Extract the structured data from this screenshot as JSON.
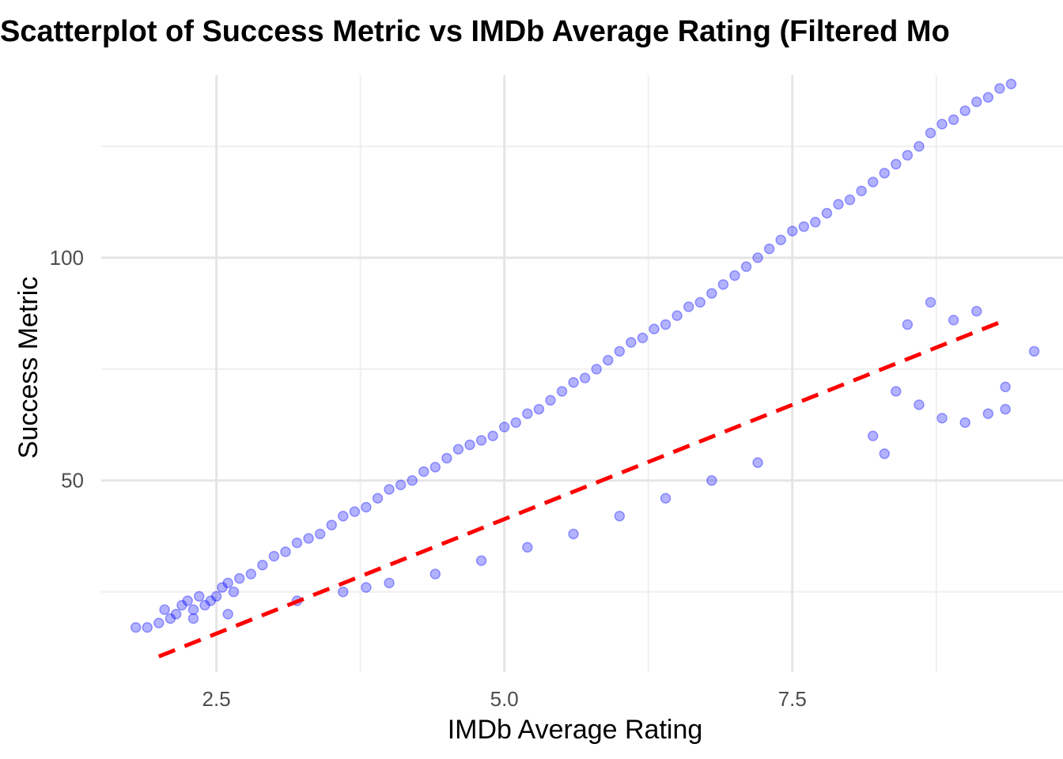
{
  "chart_data": {
    "type": "scatter",
    "title": "Scatterplot of Success Metric vs IMDb Average Rating (Filtered Mo",
    "xlabel": "IMDb Average Rating",
    "ylabel": "Success Metric",
    "xlim": [
      1.5,
      9.85
    ],
    "ylim": [
      7,
      141
    ],
    "x_ticks": [
      2.5,
      5.0,
      7.5
    ],
    "x_tick_labels": [
      "2.5",
      "5.0",
      "7.5"
    ],
    "y_ticks": [
      50,
      100
    ],
    "y_tick_labels": [
      "50",
      "100"
    ],
    "x_minor_ticks": [
      3.75,
      6.25,
      8.75
    ],
    "y_minor_ticks": [
      25,
      75,
      125
    ],
    "grid": true,
    "point_color": "#0000ff",
    "point_opacity": 0.3,
    "series": [
      {
        "type": "scatter",
        "x": [
          1.8,
          1.9,
          2.0,
          2.05,
          2.1,
          2.15,
          2.2,
          2.25,
          2.3,
          2.35,
          2.4,
          2.45,
          2.5,
          2.55,
          2.6,
          2.65,
          2.7,
          2.8,
          2.9,
          3.0,
          3.1,
          3.2,
          3.3,
          3.4,
          3.5,
          3.6,
          3.7,
          3.8,
          3.9,
          4.0,
          4.1,
          4.2,
          4.3,
          4.4,
          4.5,
          4.6,
          4.7,
          4.8,
          4.9,
          5.0,
          5.1,
          5.2,
          5.3,
          5.4,
          5.5,
          5.6,
          5.7,
          5.8,
          5.9,
          6.0,
          6.1,
          6.2,
          6.3,
          6.4,
          6.5,
          6.6,
          6.7,
          6.8,
          6.9,
          7.0,
          7.1,
          7.2,
          7.3,
          7.4,
          7.5,
          7.6,
          7.7,
          7.8,
          7.9,
          8.0,
          8.1,
          8.2,
          8.3,
          8.4,
          8.5,
          8.6,
          8.7,
          8.8,
          8.9,
          9.0,
          9.1,
          9.2,
          9.3,
          9.4,
          9.6,
          8.4,
          8.6,
          8.8,
          9.0,
          9.2,
          9.35,
          9.35,
          8.5,
          8.7,
          8.9,
          9.1,
          8.2,
          8.3,
          7.2,
          6.8,
          6.4,
          6.0,
          5.6,
          5.2,
          4.8,
          4.4,
          4.0,
          3.8,
          3.6,
          3.2,
          2.6,
          2.3
        ],
        "y": [
          17,
          17,
          18,
          21,
          19,
          20,
          22,
          23,
          21,
          24,
          22,
          23,
          24,
          26,
          27,
          25,
          28,
          29,
          31,
          33,
          34,
          36,
          37,
          38,
          40,
          42,
          43,
          44,
          46,
          48,
          49,
          50,
          52,
          53,
          55,
          57,
          58,
          59,
          60,
          62,
          63,
          65,
          66,
          68,
          70,
          72,
          73,
          75,
          77,
          79,
          81,
          82,
          84,
          85,
          87,
          89,
          90,
          92,
          94,
          96,
          98,
          100,
          102,
          104,
          106,
          107,
          108,
          110,
          112,
          113,
          115,
          117,
          119,
          121,
          123,
          125,
          128,
          130,
          131,
          133,
          135,
          136,
          138,
          139,
          79,
          70,
          67,
          64,
          63,
          65,
          66,
          71,
          85,
          90,
          86,
          88,
          60,
          56,
          54,
          50,
          46,
          42,
          38,
          35,
          32,
          29,
          27,
          26,
          25,
          23,
          20,
          19
        ],
        "trend_line": {
          "type": "linear",
          "color": "#ff0000",
          "style": "dashed",
          "x": [
            2.0,
            9.35
          ],
          "y": [
            10.5,
            86
          ]
        }
      }
    ]
  }
}
